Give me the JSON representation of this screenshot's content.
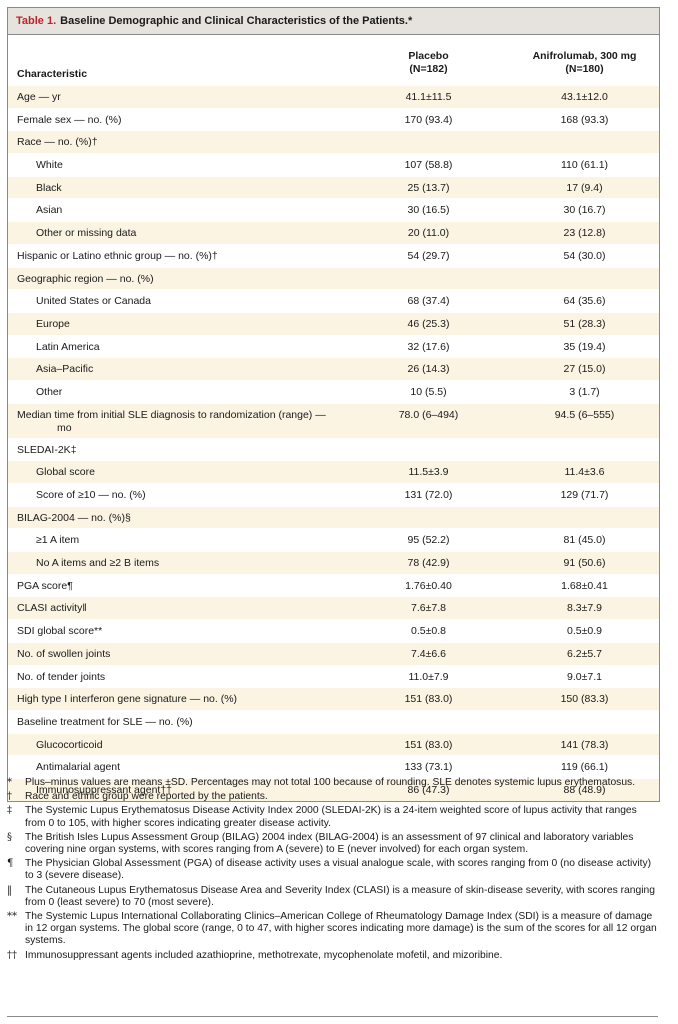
{
  "caption": {
    "label": "Table 1.",
    "title": "Baseline Demographic and Clinical Characteristics of the Patients.*"
  },
  "header": {
    "characteristic": "Characteristic",
    "placebo_name": "Placebo",
    "placebo_n": "(N=182)",
    "anifrolumab_name": "Anifrolumab, 300 mg",
    "anifrolumab_n": "(N=180)"
  },
  "rows": [
    {
      "label": "Age — yr",
      "placebo": "41.1±11.5",
      "anifrolumab": "43.1±12.0"
    },
    {
      "label": "Female sex — no. (%)",
      "placebo": "170 (93.4)",
      "anifrolumab": "168 (93.3)"
    },
    {
      "label": "Race — no. (%)†",
      "placebo": "",
      "anifrolumab": ""
    },
    {
      "label": "White",
      "placebo": "107 (58.8)",
      "anifrolumab": "110 (61.1)"
    },
    {
      "label": "Black",
      "placebo": "25 (13.7)",
      "anifrolumab": "17 (9.4)"
    },
    {
      "label": "Asian",
      "placebo": "30 (16.5)",
      "anifrolumab": "30 (16.7)"
    },
    {
      "label": "Other or missing data",
      "placebo": "20 (11.0)",
      "anifrolumab": "23 (12.8)"
    },
    {
      "label": "Hispanic or Latino ethnic group — no. (%)†",
      "placebo": "54 (29.7)",
      "anifrolumab": "54 (30.0)"
    },
    {
      "label": "Geographic region — no. (%)",
      "placebo": "",
      "anifrolumab": ""
    },
    {
      "label": "United States or Canada",
      "placebo": "68 (37.4)",
      "anifrolumab": "64 (35.6)"
    },
    {
      "label": "Europe",
      "placebo": "46 (25.3)",
      "anifrolumab": "51 (28.3)"
    },
    {
      "label": "Latin America",
      "placebo": "32 (17.6)",
      "anifrolumab": "35 (19.4)"
    },
    {
      "label": "Asia–Pacific",
      "placebo": "26 (14.3)",
      "anifrolumab": "27 (15.0)"
    },
    {
      "label": "Other",
      "placebo": "10 (5.5)",
      "anifrolumab": "3 (1.7)"
    },
    {
      "label": "Median time from initial SLE diagnosis to randomization (range) — mo",
      "placebo": "78.0 (6–494)",
      "anifrolumab": "94.5 (6–555)"
    },
    {
      "label": "SLEDAI-2K‡",
      "placebo": "",
      "anifrolumab": ""
    },
    {
      "label": "Global score",
      "placebo": "11.5±3.9",
      "anifrolumab": "11.4±3.6"
    },
    {
      "label": "Score of ≥10 — no. (%)",
      "placebo": "131 (72.0)",
      "anifrolumab": "129 (71.7)"
    },
    {
      "label": "BILAG-2004 — no. (%)§",
      "placebo": "",
      "anifrolumab": ""
    },
    {
      "label": "≥1 A item",
      "placebo": "95 (52.2)",
      "anifrolumab": "81 (45.0)"
    },
    {
      "label": "No A items and ≥2 B items",
      "placebo": "78 (42.9)",
      "anifrolumab": "91 (50.6)"
    },
    {
      "label": "PGA score¶",
      "placebo": "1.76±0.40",
      "anifrolumab": "1.68±0.41"
    },
    {
      "label": "CLASI activity‖",
      "placebo": "7.6±7.8",
      "anifrolumab": "8.3±7.9"
    },
    {
      "label": "SDI global score**",
      "placebo": "0.5±0.8",
      "anifrolumab": "0.5±0.9"
    },
    {
      "label": "No. of swollen joints",
      "placebo": "7.4±6.6",
      "anifrolumab": "6.2±5.7"
    },
    {
      "label": "No. of tender joints",
      "placebo": "11.0±7.9",
      "anifrolumab": "9.0±7.1"
    },
    {
      "label": "High type I interferon gene signature — no. (%)",
      "placebo": "151 (83.0)",
      "anifrolumab": "150 (83.3)"
    },
    {
      "label": "Baseline treatment for SLE — no. (%)",
      "placebo": "",
      "anifrolumab": ""
    },
    {
      "label": "Glucocorticoid",
      "placebo": "151 (83.0)",
      "anifrolumab": "141 (78.3)"
    },
    {
      "label": "Antimalarial agent",
      "placebo": "133 (73.1)",
      "anifrolumab": "119 (66.1)"
    },
    {
      "label": "Immunosuppressant agent††",
      "placebo": "86 (47.3)",
      "anifrolumab": "88 (48.9)"
    }
  ],
  "footnotes": [
    {
      "symbol": "*",
      "text": "Plus–minus values are means ±SD. Percentages may not total 100 because of rounding. SLE denotes systemic lupus erythematosus."
    },
    {
      "symbol": "†",
      "text": "Race and ethnic group were reported by the patients."
    },
    {
      "symbol": "‡",
      "text": "The Systemic Lupus Erythematosus Disease Activity Index 2000 (SLEDAI-2K) is a 24-item weighted score of lupus activity that ranges from 0 to 105, with higher scores indicating greater disease activity."
    },
    {
      "symbol": "§",
      "text": "The British Isles Lupus Assessment Group (BILAG) 2004 index (BILAG-2004) is an assessment of 97 clinical and laboratory variables covering nine organ systems, with scores ranging from A (severe) to E (never involved) for each organ system."
    },
    {
      "symbol": "¶",
      "text": "The Physician Global Assessment (PGA) of disease activity uses a visual analogue scale, with scores ranging from 0 (no disease activity) to 3 (severe disease)."
    },
    {
      "symbol": "‖",
      "text": "The Cutaneous Lupus Erythematosus Disease Area and Severity Index (CLASI) is a measure of skin-disease severity, with scores ranging from 0 (least severe) to 70 (most severe)."
    },
    {
      "symbol": "**",
      "text": "The Systemic Lupus International Collaborating Clinics–American College of Rheumatology Damage Index (SDI) is a measure of damage in 12 organ systems. The global score (range, 0 to 47, with higher scores indicating more damage) is the sum of the scores for all 12 organ systems."
    },
    {
      "symbol": "††",
      "text": "Immunosuppressant agents included azathioprine, methotrexate, mycophenolate mofetil, and mizoribine."
    }
  ]
}
